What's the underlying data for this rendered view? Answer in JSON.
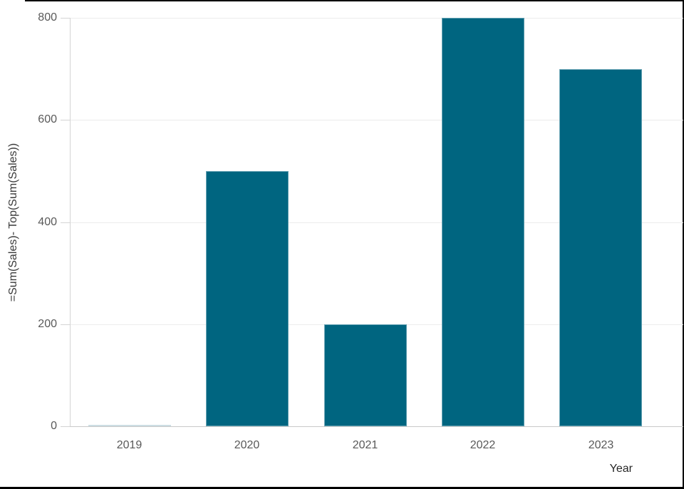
{
  "chart_data": {
    "type": "bar",
    "title": "",
    "categories": [
      "2019",
      "2020",
      "2021",
      "2022",
      "2023"
    ],
    "values": [
      1,
      500,
      200,
      800,
      700
    ],
    "xlabel": "Year",
    "ylabel": "=Sum(Sales)- Top(Sum(Sales))",
    "yticks": [
      0,
      200,
      400,
      600,
      800
    ],
    "ytick_labels": [
      "0",
      "200",
      "400",
      "600",
      "800"
    ],
    "ylim": [
      0,
      800
    ],
    "grid": true,
    "legend": false
  },
  "colors": {
    "bar": "#006580",
    "bar_faint": "#aac6d1",
    "gridline": "#ececec",
    "axis_line": "#d4d4d4",
    "baseline": "#c9c9c9",
    "tick_text": "#595959",
    "axis_title_text": "#3a3a3a",
    "frame_border": "#000000"
  }
}
